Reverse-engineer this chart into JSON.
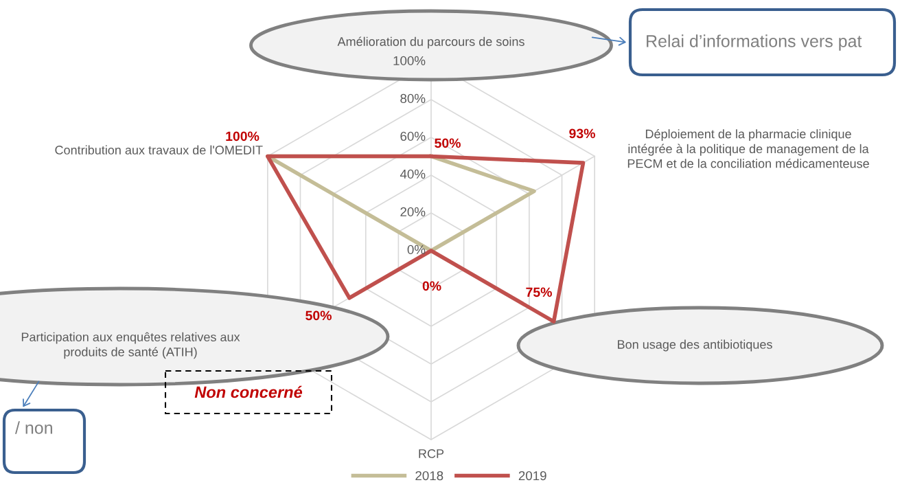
{
  "chart_data": {
    "type": "radar",
    "categories": [
      "Amélioration du parcours de soins",
      "Déploiement de la pharmacie clinique\nintégrée à la politique de management de la\nPECM et de la conciliation médicamenteuse",
      "Bon usage des antibiotiques",
      "RCP",
      "Participation aux enquêtes relatives aux\nproduits de santé (ATIH)",
      "Contribution aux travaux de l'OMEDIT"
    ],
    "ylim": [
      0,
      100
    ],
    "yticks": [
      {
        "value": 0,
        "label": "0%"
      },
      {
        "value": 20,
        "label": "20%"
      },
      {
        "value": 40,
        "label": "40%"
      },
      {
        "value": 60,
        "label": "60%"
      },
      {
        "value": 80,
        "label": "80%"
      },
      {
        "value": 100,
        "label": "100%"
      }
    ],
    "grid": true,
    "legend": "bottom",
    "series": [
      {
        "name": "2018",
        "color": "#c4bd97",
        "values": [
          50,
          63,
          0,
          0,
          0,
          100
        ]
      },
      {
        "name": "2019",
        "color": "#c0504d",
        "values": [
          50,
          93,
          75,
          0,
          50,
          100
        ],
        "value_labels": [
          "50%",
          "93%",
          "75%",
          "0%",
          "50%",
          "100%"
        ]
      }
    ],
    "annotations": [
      "Non concerné",
      "Relai d’informations vers pat",
      "/ non"
    ]
  }
}
